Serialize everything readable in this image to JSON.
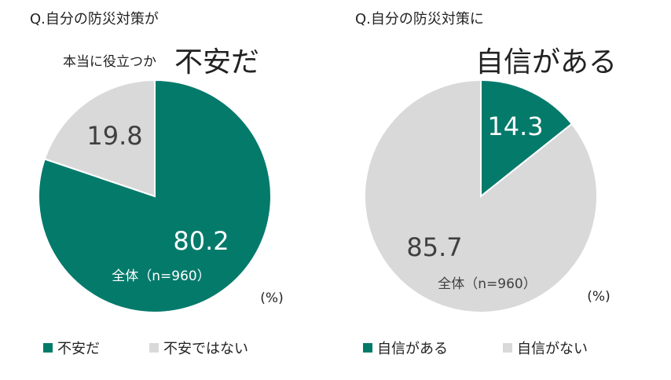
{
  "colors": {
    "teal": "#047A6B",
    "gray": "#D9D9D9",
    "white": "#ffffff",
    "dark": "#222222"
  },
  "chart_data": [
    {
      "type": "pie",
      "title_line1": "Q.自分の防災対策が",
      "title_line2_small": "本当に役立つか",
      "title_line2_large": "不安だ",
      "unit": "(%)",
      "sample": "全体（n=960）",
      "slices": [
        {
          "label": "不安だ",
          "value": 80.2,
          "value_label": "80.2",
          "color": "#047A6B"
        },
        {
          "label": "不安ではない",
          "value": 19.8,
          "value_label": "19.8",
          "color": "#D9D9D9"
        }
      ]
    },
    {
      "type": "pie",
      "title_line1": "Q.自分の防災対策に",
      "title_line2_large": "自信がある",
      "unit": "(%)",
      "sample": "全体（n=960）",
      "slices": [
        {
          "label": "自信がある",
          "value": 14.3,
          "value_label": "14.3",
          "color": "#047A6B"
        },
        {
          "label": "自信がない",
          "value": 85.7,
          "value_label": "85.7",
          "color": "#D9D9D9"
        }
      ]
    }
  ]
}
